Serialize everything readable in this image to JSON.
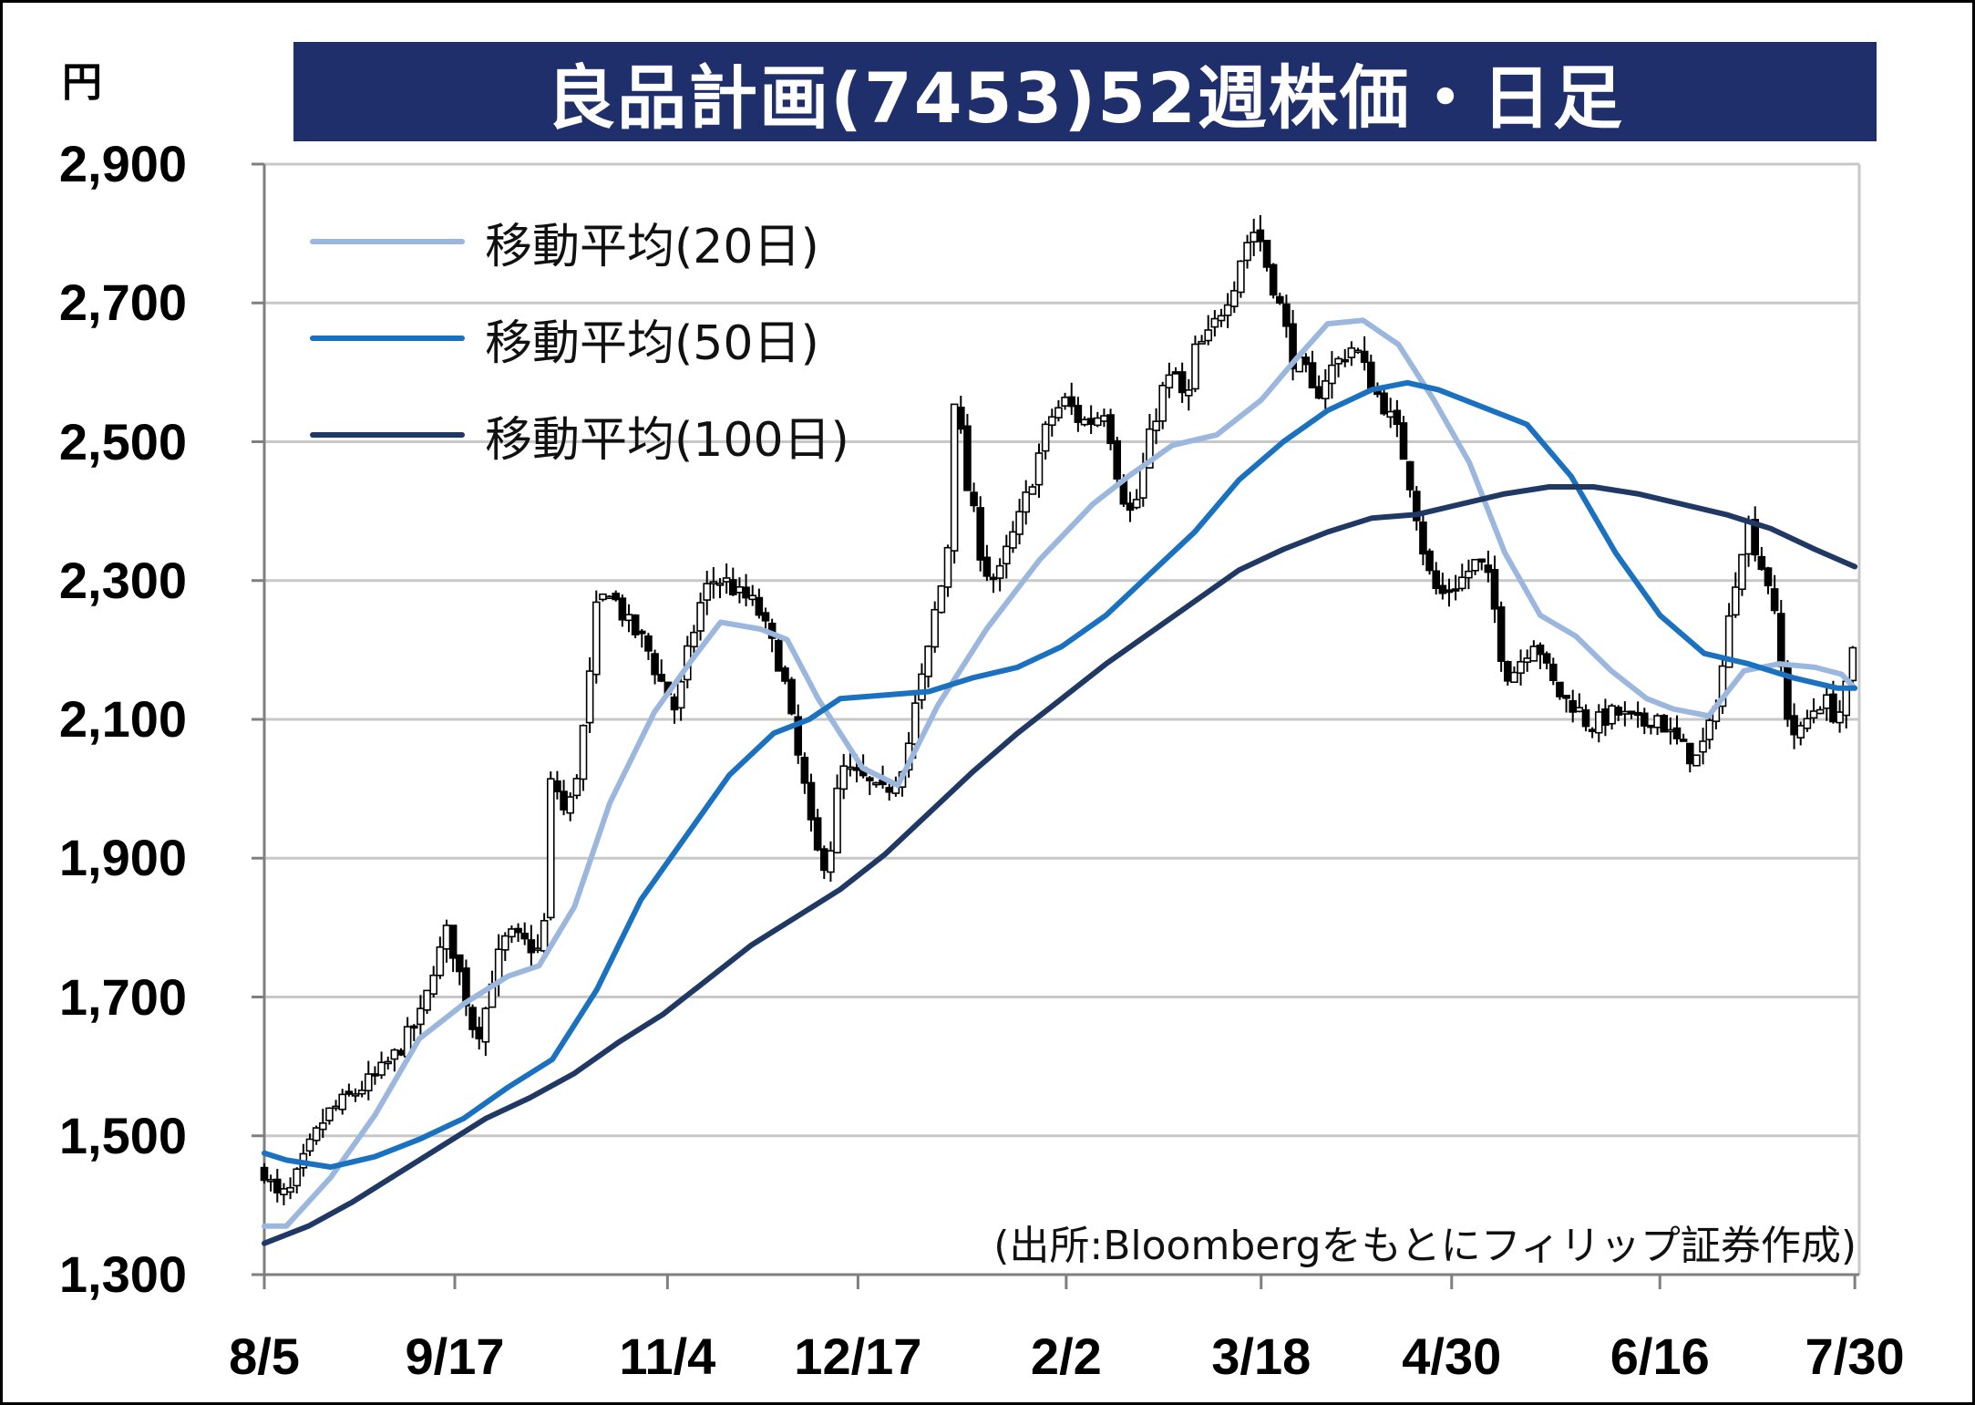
{
  "chart_data": {
    "type": "candlestick",
    "title": "良品計画(7453)52週株価・日足",
    "unit": "円",
    "source": "(出所:Bloombergをもとにフィリップ証券作成)",
    "ylim": [
      1300,
      2900
    ],
    "yticks": [
      1300,
      1500,
      1700,
      1900,
      2100,
      2300,
      2500,
      2700,
      2900
    ],
    "ytick_labels": [
      "1,300",
      "1,500",
      "1,700",
      "1,900",
      "2,100",
      "2,300",
      "2,500",
      "2,700",
      "2,900"
    ],
    "xticks": [
      {
        "label": "8/5",
        "day": 0
      },
      {
        "label": "9/17",
        "day": 43
      },
      {
        "label": "11/4",
        "day": 91
      },
      {
        "label": "12/17",
        "day": 134
      },
      {
        "label": "2/2",
        "day": 181
      },
      {
        "label": "3/18",
        "day": 225
      },
      {
        "label": "4/30",
        "day": 268
      },
      {
        "label": "6/16",
        "day": 315
      },
      {
        "label": "7/30",
        "day": 359
      }
    ],
    "grid": true,
    "legend_position": "top-left",
    "series": [
      {
        "name": "移動平均(20日)",
        "color": "#9bb7dd",
        "points": [
          [
            0,
            1370
          ],
          [
            5,
            1370
          ],
          [
            15,
            1440
          ],
          [
            25,
            1530
          ],
          [
            35,
            1640
          ],
          [
            45,
            1690
          ],
          [
            55,
            1730
          ],
          [
            62,
            1745
          ],
          [
            70,
            1830
          ],
          [
            78,
            1980
          ],
          [
            88,
            2110
          ],
          [
            97,
            2190
          ],
          [
            103,
            2240
          ],
          [
            112,
            2230
          ],
          [
            118,
            2215
          ],
          [
            125,
            2130
          ],
          [
            135,
            2030
          ],
          [
            143,
            2005
          ],
          [
            152,
            2120
          ],
          [
            163,
            2230
          ],
          [
            175,
            2330
          ],
          [
            187,
            2410
          ],
          [
            195,
            2450
          ],
          [
            205,
            2495
          ],
          [
            215,
            2510
          ],
          [
            225,
            2560
          ],
          [
            233,
            2620
          ],
          [
            240,
            2670
          ],
          [
            248,
            2675
          ],
          [
            256,
            2640
          ],
          [
            264,
            2560
          ],
          [
            272,
            2470
          ],
          [
            280,
            2340
          ],
          [
            288,
            2250
          ],
          [
            296,
            2220
          ],
          [
            304,
            2170
          ],
          [
            312,
            2130
          ],
          [
            318,
            2115
          ],
          [
            326,
            2105
          ],
          [
            334,
            2170
          ],
          [
            342,
            2180
          ],
          [
            350,
            2175
          ],
          [
            356,
            2165
          ],
          [
            359,
            2145
          ]
        ]
      },
      {
        "name": "移動平均(50日)",
        "color": "#1a71bf",
        "points": [
          [
            0,
            1475
          ],
          [
            5,
            1465
          ],
          [
            15,
            1455
          ],
          [
            25,
            1470
          ],
          [
            35,
            1495
          ],
          [
            45,
            1525
          ],
          [
            55,
            1570
          ],
          [
            65,
            1610
          ],
          [
            75,
            1710
          ],
          [
            85,
            1840
          ],
          [
            95,
            1930
          ],
          [
            105,
            2020
          ],
          [
            115,
            2080
          ],
          [
            123,
            2100
          ],
          [
            130,
            2130
          ],
          [
            140,
            2135
          ],
          [
            150,
            2140
          ],
          [
            160,
            2160
          ],
          [
            170,
            2175
          ],
          [
            180,
            2205
          ],
          [
            190,
            2250
          ],
          [
            200,
            2310
          ],
          [
            210,
            2370
          ],
          [
            220,
            2445
          ],
          [
            230,
            2500
          ],
          [
            240,
            2545
          ],
          [
            250,
            2575
          ],
          [
            258,
            2585
          ],
          [
            265,
            2575
          ],
          [
            275,
            2550
          ],
          [
            285,
            2525
          ],
          [
            295,
            2450
          ],
          [
            305,
            2340
          ],
          [
            315,
            2250
          ],
          [
            325,
            2195
          ],
          [
            335,
            2180
          ],
          [
            345,
            2160
          ],
          [
            355,
            2145
          ],
          [
            359,
            2145
          ]
        ]
      },
      {
        "name": "移動平均(100日)",
        "color": "#1f3864",
        "points": [
          [
            0,
            1345
          ],
          [
            10,
            1370
          ],
          [
            20,
            1405
          ],
          [
            30,
            1445
          ],
          [
            40,
            1485
          ],
          [
            50,
            1525
          ],
          [
            60,
            1555
          ],
          [
            70,
            1590
          ],
          [
            80,
            1635
          ],
          [
            90,
            1675
          ],
          [
            100,
            1725
          ],
          [
            110,
            1775
          ],
          [
            120,
            1815
          ],
          [
            130,
            1855
          ],
          [
            140,
            1905
          ],
          [
            150,
            1965
          ],
          [
            160,
            2025
          ],
          [
            170,
            2080
          ],
          [
            180,
            2130
          ],
          [
            190,
            2180
          ],
          [
            200,
            2225
          ],
          [
            210,
            2270
          ],
          [
            220,
            2315
          ],
          [
            230,
            2345
          ],
          [
            240,
            2370
          ],
          [
            250,
            2390
          ],
          [
            260,
            2395
          ],
          [
            270,
            2410
          ],
          [
            280,
            2425
          ],
          [
            290,
            2435
          ],
          [
            300,
            2435
          ],
          [
            310,
            2425
          ],
          [
            320,
            2410
          ],
          [
            330,
            2395
          ],
          [
            340,
            2375
          ],
          [
            350,
            2345
          ],
          [
            359,
            2320
          ]
        ]
      }
    ],
    "price_path": [
      [
        0,
        1450
      ],
      [
        3,
        1410
      ],
      [
        6,
        1420
      ],
      [
        10,
        1480
      ],
      [
        14,
        1530
      ],
      [
        18,
        1550
      ],
      [
        22,
        1570
      ],
      [
        26,
        1590
      ],
      [
        30,
        1620
      ],
      [
        33,
        1650
      ],
      [
        36,
        1680
      ],
      [
        38,
        1740
      ],
      [
        40,
        1770
      ],
      [
        41,
        1795
      ],
      [
        43,
        1760
      ],
      [
        45,
        1710
      ],
      [
        47,
        1660
      ],
      [
        49,
        1650
      ],
      [
        51,
        1720
      ],
      [
        53,
        1760
      ],
      [
        55,
        1790
      ],
      [
        58,
        1780
      ],
      [
        61,
        1770
      ],
      [
        63,
        1760
      ],
      [
        64,
        2010
      ],
      [
        66,
        2000
      ],
      [
        68,
        1960
      ],
      [
        70,
        2000
      ],
      [
        73,
        2130
      ],
      [
        75,
        2260
      ],
      [
        78,
        2290
      ],
      [
        80,
        2260
      ],
      [
        83,
        2230
      ],
      [
        86,
        2210
      ],
      [
        89,
        2160
      ],
      [
        91,
        2140
      ],
      [
        93,
        2110
      ],
      [
        95,
        2180
      ],
      [
        97,
        2230
      ],
      [
        99,
        2280
      ],
      [
        101,
        2300
      ],
      [
        104,
        2300
      ],
      [
        107,
        2280
      ],
      [
        110,
        2270
      ],
      [
        112,
        2250
      ],
      [
        115,
        2200
      ],
      [
        117,
        2170
      ],
      [
        120,
        2060
      ],
      [
        122,
        2000
      ],
      [
        124,
        1920
      ],
      [
        126,
        1890
      ],
      [
        128,
        1920
      ],
      [
        130,
        2030
      ],
      [
        133,
        2020
      ],
      [
        136,
        2010
      ],
      [
        139,
        1990
      ],
      [
        142,
        2010
      ],
      [
        145,
        2050
      ],
      [
        147,
        2120
      ],
      [
        150,
        2200
      ],
      [
        152,
        2280
      ],
      [
        154,
        2310
      ],
      [
        156,
        2600
      ],
      [
        158,
        2450
      ],
      [
        160,
        2400
      ],
      [
        162,
        2330
      ],
      [
        164,
        2300
      ],
      [
        166,
        2310
      ],
      [
        168,
        2350
      ],
      [
        170,
        2380
      ],
      [
        172,
        2420
      ],
      [
        174,
        2460
      ],
      [
        176,
        2510
      ],
      [
        178,
        2540
      ],
      [
        181,
        2560
      ],
      [
        184,
        2530
      ],
      [
        187,
        2530
      ],
      [
        190,
        2550
      ],
      [
        192,
        2470
      ],
      [
        194,
        2420
      ],
      [
        196,
        2390
      ],
      [
        198,
        2450
      ],
      [
        200,
        2510
      ],
      [
        203,
        2580
      ],
      [
        206,
        2600
      ],
      [
        208,
        2540
      ],
      [
        210,
        2630
      ],
      [
        213,
        2650
      ],
      [
        216,
        2690
      ],
      [
        219,
        2730
      ],
      [
        221,
        2780
      ],
      [
        224,
        2810
      ],
      [
        226,
        2760
      ],
      [
        228,
        2720
      ],
      [
        230,
        2680
      ],
      [
        232,
        2620
      ],
      [
        235,
        2600
      ],
      [
        237,
        2560
      ],
      [
        240,
        2600
      ],
      [
        243,
        2620
      ],
      [
        246,
        2640
      ],
      [
        248,
        2610
      ],
      [
        250,
        2580
      ],
      [
        253,
        2550
      ],
      [
        256,
        2510
      ],
      [
        258,
        2460
      ],
      [
        260,
        2400
      ],
      [
        262,
        2330
      ],
      [
        264,
        2290
      ],
      [
        266,
        2280
      ],
      [
        270,
        2300
      ],
      [
        274,
        2330
      ],
      [
        277,
        2290
      ],
      [
        279,
        2200
      ],
      [
        281,
        2160
      ],
      [
        284,
        2190
      ],
      [
        287,
        2220
      ],
      [
        290,
        2160
      ],
      [
        293,
        2130
      ],
      [
        296,
        2120
      ],
      [
        299,
        2090
      ],
      [
        302,
        2100
      ],
      [
        305,
        2110
      ],
      [
        308,
        2100
      ],
      [
        311,
        2090
      ],
      [
        314,
        2110
      ],
      [
        317,
        2080
      ],
      [
        320,
        2060
      ],
      [
        323,
        2040
      ],
      [
        326,
        2080
      ],
      [
        329,
        2170
      ],
      [
        331,
        2260
      ],
      [
        333,
        2340
      ],
      [
        335,
        2380
      ],
      [
        338,
        2320
      ],
      [
        340,
        2290
      ],
      [
        342,
        2190
      ],
      [
        344,
        2100
      ],
      [
        346,
        2070
      ],
      [
        349,
        2110
      ],
      [
        352,
        2130
      ],
      [
        355,
        2100
      ],
      [
        357,
        2140
      ],
      [
        359,
        2210
      ]
    ]
  }
}
